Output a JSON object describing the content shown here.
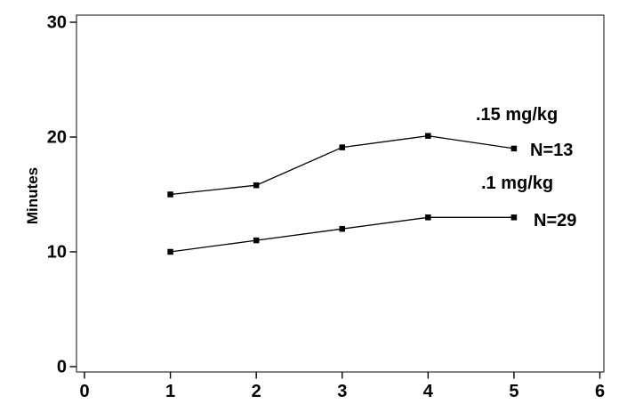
{
  "chart_data": {
    "type": "line",
    "title": "",
    "xlabel": "",
    "ylabel": "Minutes",
    "x": [
      1,
      2,
      3,
      4,
      5
    ],
    "series": [
      {
        "name": ".15 mg/kg",
        "n_label": "N=13",
        "values": [
          15,
          15.8,
          19.1,
          20.1,
          19
        ]
      },
      {
        "name": ".1 mg/kg",
        "n_label": "N=29",
        "values": [
          10,
          11,
          12,
          13,
          13
        ]
      }
    ],
    "xlim": [
      0,
      6
    ],
    "ylim": [
      0,
      30
    ],
    "x_ticks": [
      0,
      1,
      2,
      3,
      4,
      5,
      6
    ],
    "y_ticks": [
      0,
      10,
      20,
      30
    ],
    "grid": false,
    "legend_position": "inline-annotations",
    "line_color": "#000000",
    "marker": "square",
    "marker_color": "#000000",
    "frame_color": "#333333",
    "text_color": "#000000",
    "background_color": "#ffffff"
  }
}
